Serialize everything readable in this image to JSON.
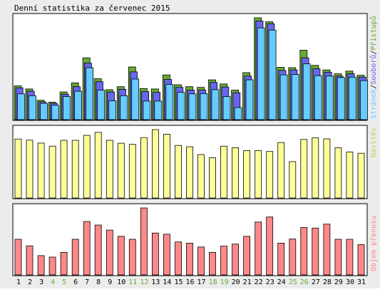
{
  "title": "Denní statistika za červenec 2015",
  "colors": {
    "background": "#ececec",
    "panel": "#ffffff",
    "frame": "#000000",
    "pristupu": "#66aa33",
    "souboru": "#6666ee",
    "stranek": "#66ccff",
    "navstev": "#ffff99",
    "objem": "#ff8888",
    "weekend_label": "#66aa33",
    "weekday_label": "#000000"
  },
  "chart_data": [
    {
      "type": "bar",
      "categories": [
        "1",
        "2",
        "3",
        "4",
        "5",
        "6",
        "7",
        "8",
        "9",
        "10",
        "11",
        "12",
        "13",
        "14",
        "15",
        "16",
        "17",
        "18",
        "19",
        "20",
        "21",
        "22",
        "23",
        "24",
        "25",
        "26",
        "27",
        "28",
        "29",
        "30",
        "31"
      ],
      "weekend_days": [
        "4",
        "5",
        "11",
        "12",
        "18",
        "19",
        "25",
        "26"
      ],
      "ymax_label": "26849",
      "ylim": [
        0,
        26849
      ],
      "legend": {
        "stranek": "Stránek",
        "souboru": "Souborů",
        "pristupu": "Přístupů",
        "separator": "/"
      },
      "series": [
        {
          "name": "Přístupů",
          "key": "pristupu",
          "values": [
            8900,
            8100,
            5100,
            4600,
            7300,
            9700,
            16300,
            10800,
            7900,
            8700,
            13900,
            8200,
            8100,
            11800,
            9200,
            8700,
            8500,
            10500,
            9400,
            7800,
            12400,
            26849,
            25800,
            13800,
            13700,
            18300,
            14300,
            13100,
            12100,
            12800,
            11700
          ]
        },
        {
          "name": "Souborů",
          "key": "souboru",
          "values": [
            8400,
            7500,
            4700,
            4300,
            6700,
            8700,
            14900,
            10000,
            7300,
            8000,
            12600,
            7400,
            7200,
            10600,
            8500,
            7800,
            7800,
            9800,
            8600,
            7100,
            11500,
            26000,
            25300,
            13000,
            13100,
            16300,
            13400,
            12500,
            11500,
            12100,
            11200
          ]
        },
        {
          "name": "Stránek",
          "key": "stranek",
          "values": [
            6800,
            6300,
            4300,
            3800,
            6100,
            7500,
            13700,
            7800,
            5000,
            6300,
            10700,
            4900,
            4900,
            9300,
            7200,
            6800,
            6900,
            7900,
            6100,
            3200,
            10500,
            24200,
            23600,
            11800,
            11900,
            14700,
            11600,
            11500,
            11100,
            11200,
            10300
          ]
        }
      ]
    },
    {
      "type": "bar",
      "categories": [
        "1",
        "2",
        "3",
        "4",
        "5",
        "6",
        "7",
        "8",
        "9",
        "10",
        "11",
        "12",
        "13",
        "14",
        "15",
        "16",
        "17",
        "18",
        "19",
        "20",
        "21",
        "22",
        "23",
        "24",
        "25",
        "26",
        "27",
        "28",
        "29",
        "30",
        "31"
      ],
      "ymax_label": "488",
      "ylim": [
        0,
        488
      ],
      "series": [
        {
          "name": "Návštěv",
          "key": "navstev",
          "values": [
            421,
            413,
            392,
            370,
            412,
            412,
            447,
            468,
            412,
            391,
            383,
            431,
            488,
            455,
            375,
            366,
            310,
            287,
            370,
            359,
            338,
            339,
            332,
            396,
            260,
            418,
            429,
            422,
            359,
            329,
            319
          ]
        }
      ]
    },
    {
      "type": "bar",
      "categories": [
        "1",
        "2",
        "3",
        "4",
        "5",
        "6",
        "7",
        "8",
        "9",
        "10",
        "11",
        "12",
        "13",
        "14",
        "15",
        "16",
        "17",
        "18",
        "19",
        "20",
        "21",
        "22",
        "23",
        "24",
        "25",
        "26",
        "27",
        "28",
        "29",
        "30",
        "31"
      ],
      "ymax_label": "225588",
      "ylim": [
        0,
        225588
      ],
      "series": [
        {
          "name": "Objem přenosu",
          "key": "objem",
          "values": [
            120000,
            98000,
            65000,
            60000,
            76000,
            120000,
            180000,
            168000,
            151000,
            130000,
            120000,
            225588,
            141000,
            137000,
            111000,
            107000,
            94000,
            76000,
            97000,
            104000,
            130000,
            178000,
            195000,
            107000,
            121000,
            160000,
            158000,
            171000,
            120000,
            120000,
            102000
          ]
        }
      ]
    }
  ]
}
